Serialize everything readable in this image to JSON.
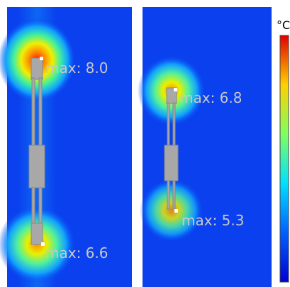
{
  "panels": [
    {
      "annotations": [
        "max: 8.0",
        "max: 6.6"
      ]
    },
    {
      "annotations": [
        "max: 6.8",
        "max: 5.3"
      ]
    }
  ],
  "colorbar": {
    "unit": "°C"
  }
}
